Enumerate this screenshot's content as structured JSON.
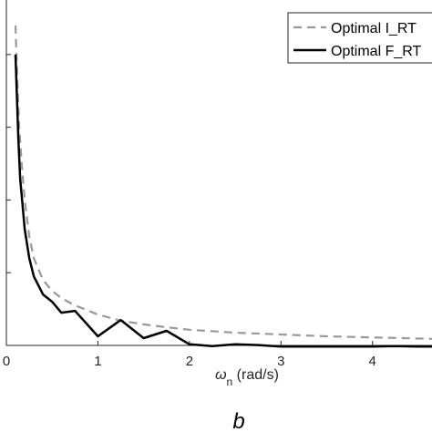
{
  "chart_data": {
    "type": "line",
    "xlabel_symbol": "ω",
    "xlabel_subscript": "n",
    "xlabel_units": "(rad/s)",
    "xlim": [
      0,
      4.65
    ],
    "ylim": [
      0,
      1
    ],
    "xticks": [
      0,
      1,
      2,
      3,
      4
    ],
    "xtick_labels": [
      "0",
      "1",
      "2",
      "3",
      "4"
    ],
    "yticks": [
      0.2,
      0.4,
      0.6,
      0.8
    ],
    "grid": false,
    "legend_position": "top-right",
    "panel_label": "b",
    "series": [
      {
        "name": "Optimal I_RT",
        "style": "dashed",
        "color": "#999999",
        "x": [
          0.1,
          0.12,
          0.14,
          0.17,
          0.2,
          0.25,
          0.3,
          0.4,
          0.5,
          0.6,
          0.75,
          1.0,
          1.25,
          1.5,
          1.75,
          2.0,
          2.5,
          3.0,
          3.5,
          4.0,
          4.65
        ],
        "y": [
          0.88,
          0.72,
          0.6,
          0.49,
          0.4,
          0.3,
          0.24,
          0.18,
          0.15,
          0.13,
          0.11,
          0.085,
          0.068,
          0.058,
          0.05,
          0.043,
          0.035,
          0.03,
          0.025,
          0.022,
          0.018
        ]
      },
      {
        "name": "Optimal F_RT",
        "style": "solid",
        "color": "#000000",
        "x": [
          0.1,
          0.13,
          0.15,
          0.2,
          0.25,
          0.3,
          0.4,
          0.5,
          0.6,
          0.75,
          1.0,
          1.25,
          1.5,
          1.75,
          2.0,
          2.25,
          2.5,
          2.75,
          3.0,
          3.25,
          3.5,
          3.75,
          4.0,
          4.25,
          4.5,
          4.65
        ],
        "y": [
          0.8,
          0.57,
          0.46,
          0.32,
          0.24,
          0.19,
          0.14,
          0.12,
          0.09,
          0.095,
          0.025,
          0.07,
          0.02,
          0.04,
          0.003,
          -0.002,
          0.003,
          0.001,
          -0.003,
          -0.003,
          -0.003,
          -0.003,
          -0.003,
          -0.002,
          -0.003,
          -0.003
        ]
      }
    ]
  }
}
